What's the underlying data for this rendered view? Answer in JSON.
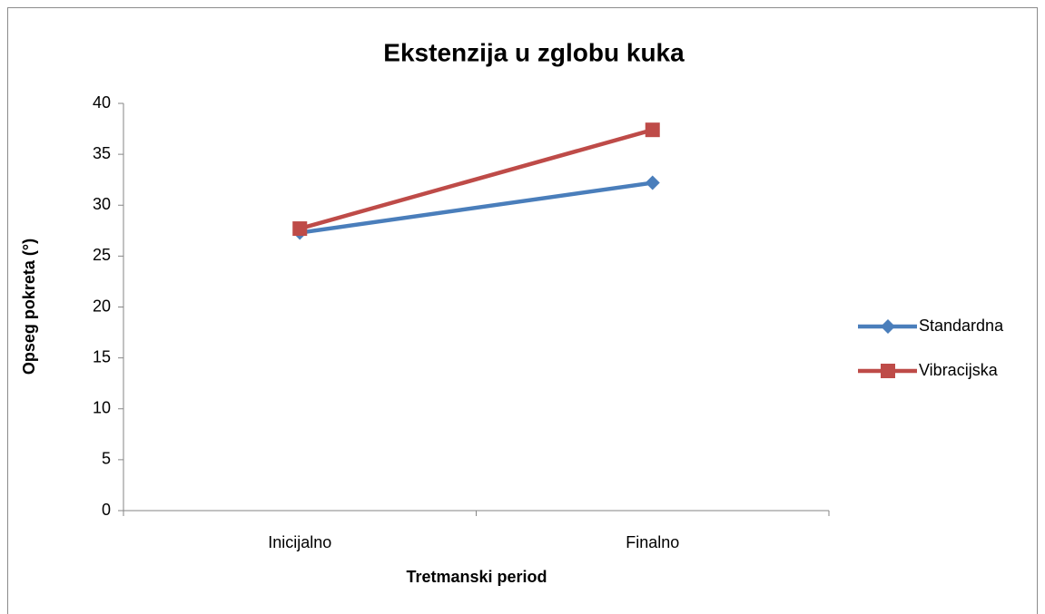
{
  "chart_data": {
    "type": "line",
    "title": "Ekstenzija u zglobu kuka",
    "x_label": "Tretmanski period",
    "y_label": "Opseg pokreta (°)",
    "categories": [
      "Inicijalno",
      "Finalno"
    ],
    "series": [
      {
        "name": "Standardna",
        "color": "#4a7ebb",
        "marker": "diamond",
        "values": [
          27.3,
          32.2
        ]
      },
      {
        "name": "Vibracijska",
        "color": "#be4b48",
        "marker": "square",
        "values": [
          27.7,
          37.4
        ]
      }
    ],
    "ylim": [
      0,
      40
    ],
    "yticks": [
      0,
      5,
      10,
      15,
      20,
      25,
      30,
      35,
      40
    ],
    "grid": false,
    "legend": "right"
  }
}
